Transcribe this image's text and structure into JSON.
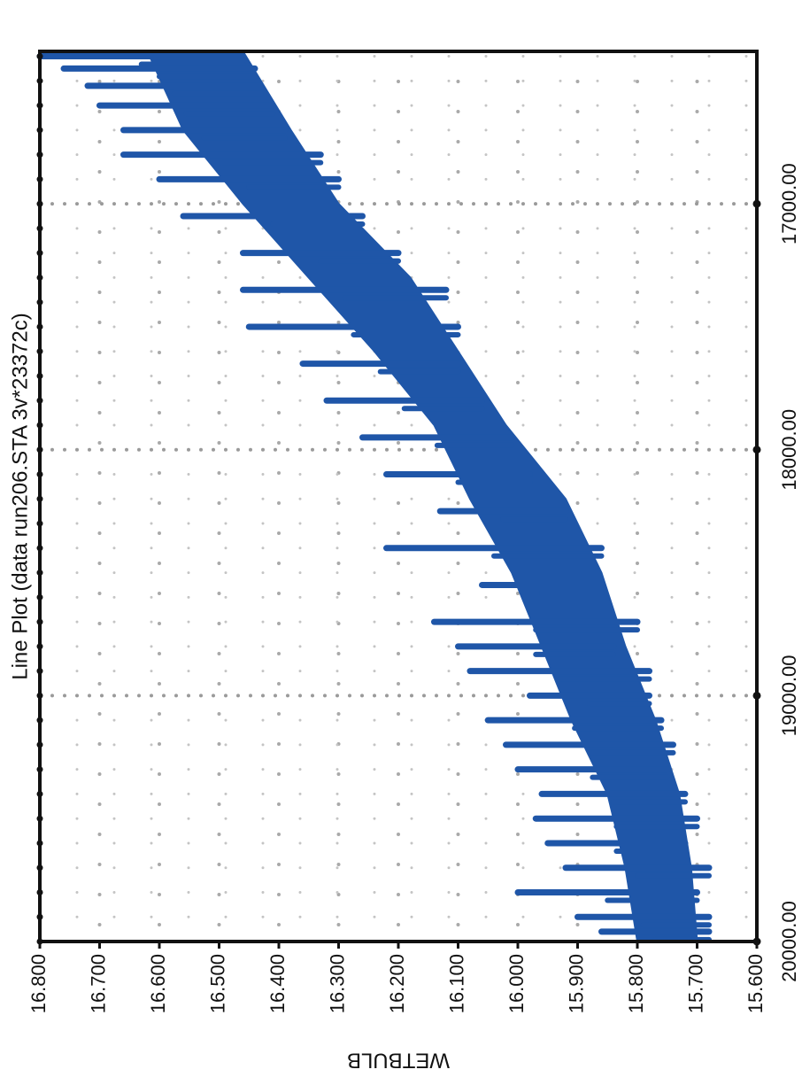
{
  "chart_data": {
    "type": "line",
    "title": "Line Plot (data run206.STA 3v*23372c)",
    "xlabel": "",
    "ylabel": "WETBULB",
    "x_ticks": [
      "17000.00",
      "18000.00",
      "19000.00",
      "20000.00"
    ],
    "y_ticks": [
      "16.800",
      "16.700",
      "16.600",
      "16.500",
      "16.400",
      "16.300",
      "16.200",
      "16.100",
      "16.000",
      "15.900",
      "15.800",
      "15.700",
      "15.600"
    ],
    "xlim": [
      16380,
      20000
    ],
    "ylim": [
      15.6,
      16.8
    ],
    "grid": true,
    "orientation": "rotated 90 degrees (x axis runs vertically)",
    "series": [
      {
        "color": "#1f56a8",
        "band_lower": [
          {
            "x": 16380,
            "y": 16.46
          },
          {
            "x": 16700,
            "y": 16.38
          },
          {
            "x": 17000,
            "y": 16.3
          },
          {
            "x": 17300,
            "y": 16.18
          },
          {
            "x": 17600,
            "y": 16.1
          },
          {
            "x": 17900,
            "y": 16.02
          },
          {
            "x": 18200,
            "y": 15.92
          },
          {
            "x": 18500,
            "y": 15.86
          },
          {
            "x": 18800,
            "y": 15.82
          },
          {
            "x": 19100,
            "y": 15.77
          },
          {
            "x": 19400,
            "y": 15.73
          },
          {
            "x": 19700,
            "y": 15.71
          },
          {
            "x": 20000,
            "y": 15.7
          }
        ],
        "band_upper": [
          {
            "x": 16380,
            "y": 16.62
          },
          {
            "x": 16700,
            "y": 16.56
          },
          {
            "x": 17000,
            "y": 16.46
          },
          {
            "x": 17300,
            "y": 16.35
          },
          {
            "x": 17600,
            "y": 16.24
          },
          {
            "x": 17900,
            "y": 16.14
          },
          {
            "x": 18200,
            "y": 16.08
          },
          {
            "x": 18500,
            "y": 16.01
          },
          {
            "x": 18800,
            "y": 15.96
          },
          {
            "x": 19100,
            "y": 15.91
          },
          {
            "x": 19400,
            "y": 15.85
          },
          {
            "x": 19700,
            "y": 15.82
          },
          {
            "x": 20000,
            "y": 15.8
          }
        ],
        "spikes": [
          {
            "x": 16400,
            "y_min": 16.46,
            "y_max": 16.8
          },
          {
            "x": 16450,
            "y_min": 16.44,
            "y_max": 16.76
          },
          {
            "x": 16520,
            "y_min": 16.43,
            "y_max": 16.72
          },
          {
            "x": 16600,
            "y_min": 16.41,
            "y_max": 16.7
          },
          {
            "x": 16700,
            "y_min": 16.39,
            "y_max": 16.66
          },
          {
            "x": 16800,
            "y_min": 16.33,
            "y_max": 16.66
          },
          {
            "x": 16900,
            "y_min": 16.3,
            "y_max": 16.6
          },
          {
            "x": 17050,
            "y_min": 16.26,
            "y_max": 16.56
          },
          {
            "x": 17200,
            "y_min": 16.2,
            "y_max": 16.46
          },
          {
            "x": 17350,
            "y_min": 16.12,
            "y_max": 16.46
          },
          {
            "x": 17500,
            "y_min": 16.1,
            "y_max": 16.45
          },
          {
            "x": 17650,
            "y_min": 16.1,
            "y_max": 16.36
          },
          {
            "x": 17800,
            "y_min": 16.06,
            "y_max": 16.32
          },
          {
            "x": 17950,
            "y_min": 16.01,
            "y_max": 16.26
          },
          {
            "x": 18100,
            "y_min": 15.98,
            "y_max": 16.22
          },
          {
            "x": 18250,
            "y_min": 15.92,
            "y_max": 16.13
          },
          {
            "x": 18400,
            "y_min": 15.86,
            "y_max": 16.22
          },
          {
            "x": 18550,
            "y_min": 15.86,
            "y_max": 16.06
          },
          {
            "x": 18700,
            "y_min": 15.8,
            "y_max": 16.14
          },
          {
            "x": 18800,
            "y_min": 15.84,
            "y_max": 16.1
          },
          {
            "x": 18900,
            "y_min": 15.78,
            "y_max": 16.08
          },
          {
            "x": 19000,
            "y_min": 15.78,
            "y_max": 15.98
          },
          {
            "x": 19100,
            "y_min": 15.76,
            "y_max": 16.05
          },
          {
            "x": 19200,
            "y_min": 15.74,
            "y_max": 16.02
          },
          {
            "x": 19300,
            "y_min": 15.75,
            "y_max": 16.0
          },
          {
            "x": 19400,
            "y_min": 15.72,
            "y_max": 15.96
          },
          {
            "x": 19500,
            "y_min": 15.7,
            "y_max": 15.97
          },
          {
            "x": 19600,
            "y_min": 15.72,
            "y_max": 15.95
          },
          {
            "x": 19700,
            "y_min": 15.68,
            "y_max": 15.92
          },
          {
            "x": 19800,
            "y_min": 15.7,
            "y_max": 16.0
          },
          {
            "x": 19900,
            "y_min": 15.68,
            "y_max": 15.9
          },
          {
            "x": 19960,
            "y_min": 15.68,
            "y_max": 15.86
          }
        ]
      }
    ]
  }
}
